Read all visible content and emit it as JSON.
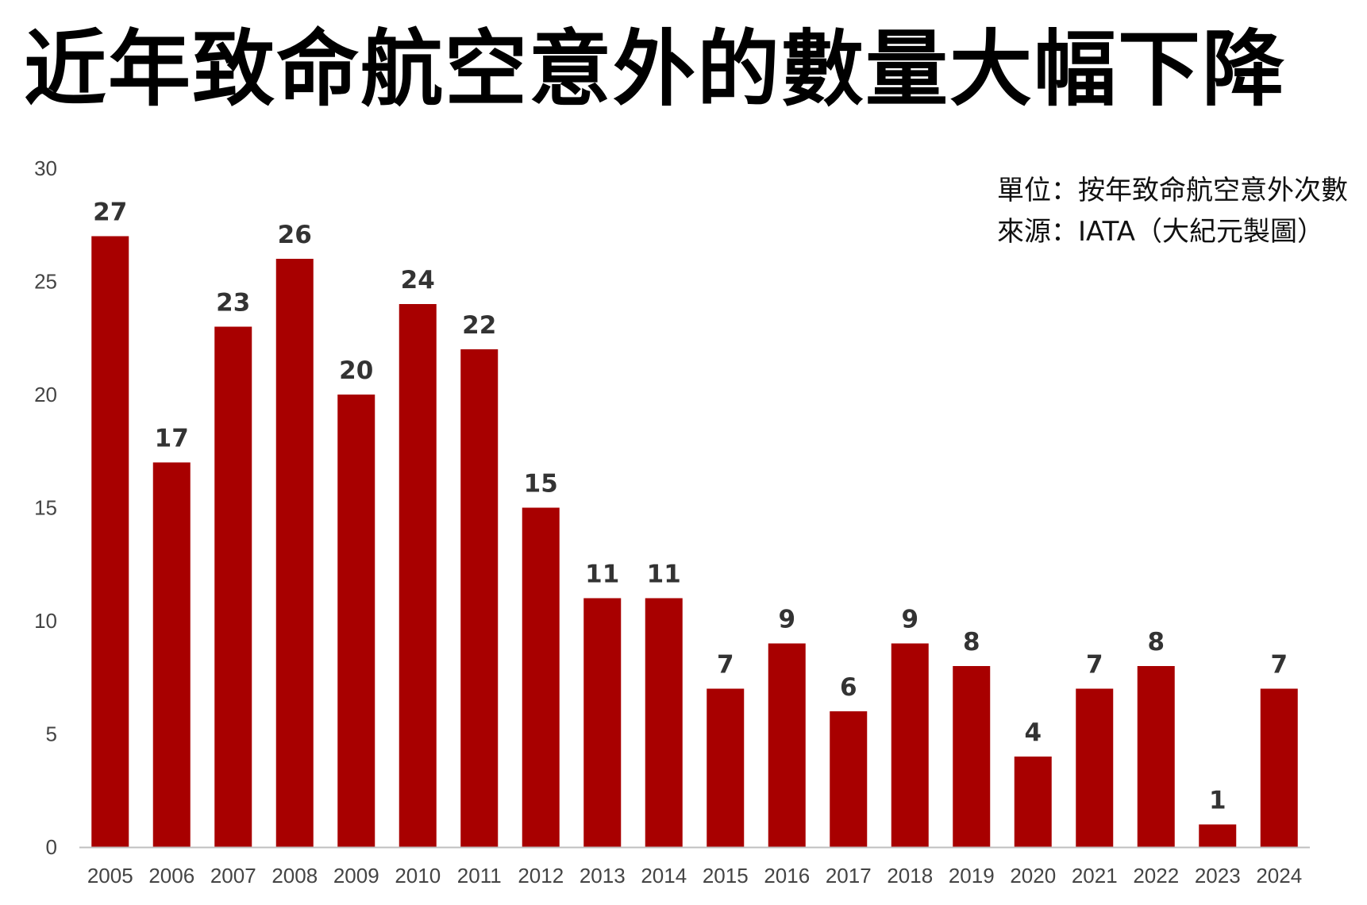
{
  "title": "近年致命航空意外的數量大幅下降",
  "notes": {
    "unit": "單位：按年致命航空意外次數",
    "source": "來源：IATA（大紀元製圖）"
  },
  "colors": {
    "bar": "#a80000",
    "axis": "#bfbfbf"
  },
  "chart_data": {
    "type": "bar",
    "categories": [
      "2005",
      "2006",
      "2007",
      "2008",
      "2009",
      "2010",
      "2011",
      "2012",
      "2013",
      "2014",
      "2015",
      "2016",
      "2017",
      "2018",
      "2019",
      "2020",
      "2021",
      "2022",
      "2023",
      "2024"
    ],
    "values": [
      27,
      17,
      23,
      26,
      20,
      24,
      22,
      15,
      11,
      11,
      7,
      9,
      6,
      9,
      8,
      4,
      7,
      8,
      1,
      7
    ],
    "yticks": [
      0,
      5,
      10,
      15,
      20,
      25,
      30
    ],
    "ylim": [
      0,
      30
    ],
    "grid": false,
    "data_labels": true,
    "legend": "none"
  }
}
